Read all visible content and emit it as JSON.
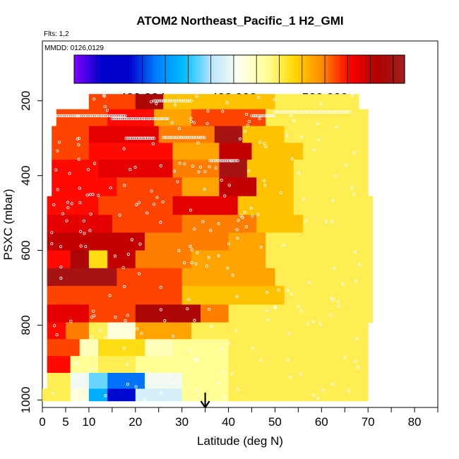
{
  "chart_data": {
    "type": "heatmap",
    "title": "ATOM2 Northeast_Pacific_1 H2_GMI",
    "annotations": {
      "flights": "Flts: 1,2",
      "dates": "MMDD: 0126,0129"
    },
    "xlabel": "Latitude (deg N)",
    "ylabel": "PSXC (mbar)",
    "xlim": [
      0,
      85
    ],
    "ylim": [
      1020,
      40
    ],
    "y_reversed": true,
    "x_ticks": [
      0,
      5,
      10,
      20,
      30,
      40,
      50,
      60,
      70,
      80
    ],
    "x_minor_ticks": [
      15,
      25,
      35,
      45,
      55,
      65,
      75,
      85
    ],
    "y_ticks": [
      200,
      400,
      600,
      800,
      1000
    ],
    "marker": {
      "latitude": 35,
      "symbol": "arrow"
    },
    "colorbar": {
      "min": 499.991,
      "max": 500.0055,
      "labels": [
        {
          "value": 499.994,
          "text": "499.994"
        },
        {
          "value": 499.998,
          "text": "499.998"
        },
        {
          "value": 500.002,
          "text": "500.002"
        }
      ],
      "stops": [
        "#8000ff",
        "#0000cc",
        "#0000cc",
        "#0080ff",
        "#00bfff",
        "#b9e6ff",
        "#ffffee",
        "#ffff99",
        "#ffd700",
        "#ff8c00",
        "#ff0000",
        "#b00000",
        "#a02020"
      ]
    },
    "layers": [
      {
        "p": 200,
        "segments": [
          [
            10,
            20,
            500.0025
          ],
          [
            20,
            26,
            500.0045
          ],
          [
            26,
            50,
            500.001
          ],
          [
            50,
            68,
            500.0
          ]
        ]
      },
      {
        "p": 245,
        "segments": [
          [
            3,
            14,
            500.0025
          ],
          [
            14,
            24,
            500.003
          ],
          [
            24,
            32,
            500.0015
          ],
          [
            32,
            48,
            500.0025
          ],
          [
            48,
            70,
            500.0
          ]
        ]
      },
      {
        "p": 290,
        "segments": [
          [
            2,
            10,
            500.0025
          ],
          [
            10,
            25,
            500.0035
          ],
          [
            25,
            37,
            500.002
          ],
          [
            37,
            43,
            500.005
          ],
          [
            43,
            52,
            500.001
          ],
          [
            52,
            70,
            500.0
          ]
        ]
      },
      {
        "p": 335,
        "segments": [
          [
            2,
            10,
            500.0025
          ],
          [
            10,
            28,
            500.003
          ],
          [
            28,
            38,
            500.0015
          ],
          [
            38,
            45,
            500.004
          ],
          [
            45,
            56,
            500.001
          ],
          [
            56,
            70,
            500.0
          ]
        ]
      },
      {
        "p": 380,
        "segments": [
          [
            2,
            12,
            500.003
          ],
          [
            12,
            28,
            500.0035
          ],
          [
            28,
            38,
            500.002
          ],
          [
            38,
            44,
            500.005
          ],
          [
            44,
            54,
            500.001
          ],
          [
            54,
            70,
            500.0
          ]
        ]
      },
      {
        "p": 430,
        "segments": [
          [
            2,
            16,
            500.003
          ],
          [
            16,
            30,
            500.0025
          ],
          [
            30,
            38,
            500.0015
          ],
          [
            38,
            46,
            500.004
          ],
          [
            46,
            54,
            500.001
          ],
          [
            54,
            70,
            500.0
          ]
        ]
      },
      {
        "p": 480,
        "segments": [
          [
            1,
            12,
            500.003
          ],
          [
            12,
            28,
            500.0025
          ],
          [
            28,
            42,
            500.0035
          ],
          [
            42,
            54,
            500.001
          ],
          [
            54,
            71,
            500.0
          ]
        ]
      },
      {
        "p": 530,
        "segments": [
          [
            1,
            15,
            500.0035
          ],
          [
            15,
            30,
            500.0025
          ],
          [
            30,
            46,
            500.002
          ],
          [
            46,
            56,
            500.001
          ],
          [
            56,
            71,
            500.0
          ]
        ]
      },
      {
        "p": 575,
        "segments": [
          [
            1,
            22,
            500.004
          ],
          [
            22,
            30,
            500.002
          ],
          [
            30,
            40,
            500.002
          ],
          [
            40,
            48,
            500.0015
          ],
          [
            48,
            71,
            500.0
          ]
        ]
      },
      {
        "p": 625,
        "segments": [
          [
            1,
            6,
            500.003
          ],
          [
            6,
            10,
            500.0045
          ],
          [
            10,
            14,
            500.0005
          ],
          [
            14,
            20,
            500.004
          ],
          [
            20,
            32,
            500.002
          ],
          [
            32,
            48,
            500.0015
          ],
          [
            48,
            71,
            500.0
          ]
        ]
      },
      {
        "p": 670,
        "segments": [
          [
            1,
            16,
            500.005
          ],
          [
            16,
            30,
            500.0025
          ],
          [
            30,
            50,
            500.0015
          ],
          [
            50,
            71,
            500.0
          ]
        ]
      },
      {
        "p": 720,
        "segments": [
          [
            1,
            12,
            500.0025
          ],
          [
            12,
            30,
            500.0025
          ],
          [
            30,
            52,
            500.001
          ],
          [
            52,
            71,
            500.0
          ]
        ]
      },
      {
        "p": 770,
        "segments": [
          [
            1,
            10,
            500.0035
          ],
          [
            10,
            20,
            500.0025
          ],
          [
            20,
            34,
            500.0045
          ],
          [
            34,
            40,
            500.002
          ],
          [
            40,
            71,
            500.0
          ]
        ]
      },
      {
        "p": 815,
        "segments": [
          [
            1,
            5,
            500.003
          ],
          [
            5,
            10,
            500.002
          ],
          [
            10,
            14,
            500.0
          ],
          [
            14,
            20,
            499.9985
          ],
          [
            20,
            32,
            500.0015
          ],
          [
            32,
            40,
            500.0
          ],
          [
            40,
            70,
            500.0
          ]
        ]
      },
      {
        "p": 860,
        "segments": [
          [
            1,
            8,
            500.0025
          ],
          [
            8,
            12,
            499.999
          ],
          [
            12,
            22,
            500.0005
          ],
          [
            22,
            28,
            499.999
          ],
          [
            28,
            40,
            499.9995
          ],
          [
            40,
            70,
            500.0
          ]
        ]
      },
      {
        "p": 905,
        "segments": [
          [
            1,
            6,
            500.003
          ],
          [
            6,
            12,
            499.9995
          ],
          [
            12,
            20,
            500.0
          ],
          [
            20,
            30,
            499.9995
          ],
          [
            30,
            40,
            499.9995
          ],
          [
            40,
            70,
            500.0
          ]
        ]
      },
      {
        "p": 950,
        "segments": [
          [
            1,
            6,
            500.0
          ],
          [
            6,
            10,
            499.998
          ],
          [
            10,
            14,
            499.9965
          ],
          [
            14,
            22,
            499.9945
          ],
          [
            22,
            30,
            499.998
          ],
          [
            30,
            40,
            499.9995
          ],
          [
            40,
            70,
            500.0
          ]
        ]
      },
      {
        "p": 990,
        "segments": [
          [
            0,
            6,
            500.0
          ],
          [
            6,
            10,
            499.9985
          ],
          [
            10,
            14,
            499.9955
          ],
          [
            14,
            20,
            499.9935
          ],
          [
            20,
            30,
            499.9975
          ],
          [
            30,
            40,
            499.9995
          ],
          [
            40,
            70,
            500.0
          ]
        ]
      }
    ]
  }
}
